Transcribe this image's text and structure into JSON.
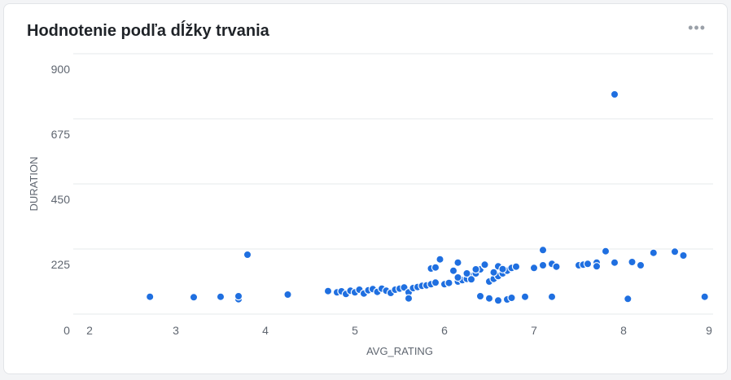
{
  "card": {
    "title": "Hodnotenie podľa dĺžky trvania",
    "menu_icon": "more-horizontal-icon"
  },
  "chart_data": {
    "type": "scatter",
    "title": "Hodnotenie podľa dĺžky trvania",
    "xlabel": "AVG_RATING",
    "ylabel": "DURATION",
    "xlim": [
      0,
      9
    ],
    "ylim": [
      0,
      900
    ],
    "x_ticks": [
      "0",
      "2",
      "3",
      "4",
      "5",
      "6",
      "7",
      "8",
      "9"
    ],
    "y_ticks": [
      "225",
      "450",
      "675",
      "900"
    ],
    "grid": true,
    "color": "#1f6fe0",
    "points": [
      [
        2.7,
        64
      ],
      [
        3.2,
        62
      ],
      [
        3.5,
        64
      ],
      [
        3.7,
        55
      ],
      [
        3.7,
        66
      ],
      [
        3.8,
        219
      ],
      [
        4.25,
        72
      ],
      [
        4.7,
        85
      ],
      [
        4.8,
        80
      ],
      [
        4.85,
        84
      ],
      [
        4.9,
        74
      ],
      [
        4.95,
        86
      ],
      [
        5.0,
        80
      ],
      [
        5.05,
        90
      ],
      [
        5.1,
        76
      ],
      [
        5.15,
        88
      ],
      [
        5.2,
        92
      ],
      [
        5.25,
        82
      ],
      [
        5.3,
        94
      ],
      [
        5.35,
        86
      ],
      [
        5.4,
        78
      ],
      [
        5.45,
        90
      ],
      [
        5.5,
        94
      ],
      [
        5.55,
        98
      ],
      [
        5.6,
        80
      ],
      [
        5.6,
        58
      ],
      [
        5.65,
        96
      ],
      [
        5.7,
        100
      ],
      [
        5.75,
        104
      ],
      [
        5.8,
        106
      ],
      [
        5.85,
        110
      ],
      [
        5.9,
        116
      ],
      [
        5.85,
        168
      ],
      [
        5.9,
        172
      ],
      [
        5.95,
        202
      ],
      [
        6.0,
        110
      ],
      [
        6.05,
        115
      ],
      [
        6.1,
        160
      ],
      [
        6.15,
        120
      ],
      [
        6.2,
        125
      ],
      [
        6.25,
        130
      ],
      [
        6.3,
        140
      ],
      [
        6.35,
        150
      ],
      [
        6.4,
        165
      ],
      [
        6.45,
        180
      ],
      [
        6.5,
        120
      ],
      [
        6.55,
        130
      ],
      [
        6.6,
        140
      ],
      [
        6.65,
        150
      ],
      [
        6.7,
        160
      ],
      [
        6.75,
        170
      ],
      [
        6.8,
        175
      ],
      [
        6.4,
        66
      ],
      [
        6.5,
        58
      ],
      [
        6.6,
        50
      ],
      [
        6.7,
        54
      ],
      [
        6.75,
        60
      ],
      [
        6.9,
        64
      ],
      [
        6.15,
        190
      ],
      [
        6.45,
        182
      ],
      [
        6.6,
        176
      ],
      [
        6.3,
        128
      ],
      [
        6.35,
        165
      ],
      [
        6.25,
        150
      ],
      [
        6.15,
        135
      ],
      [
        6.05,
        115
      ],
      [
        6.55,
        154
      ],
      [
        6.65,
        166
      ],
      [
        7.0,
        170
      ],
      [
        7.1,
        180
      ],
      [
        7.1,
        236
      ],
      [
        7.2,
        185
      ],
      [
        7.25,
        175
      ],
      [
        7.2,
        64
      ],
      [
        7.5,
        180
      ],
      [
        7.55,
        182
      ],
      [
        7.6,
        185
      ],
      [
        7.7,
        190
      ],
      [
        7.7,
        176
      ],
      [
        7.8,
        232
      ],
      [
        7.9,
        190
      ],
      [
        7.9,
        810
      ],
      [
        8.05,
        56
      ],
      [
        8.1,
        192
      ],
      [
        8.2,
        180
      ],
      [
        8.35,
        226
      ],
      [
        8.6,
        230
      ],
      [
        8.7,
        216
      ],
      [
        8.95,
        64
      ]
    ]
  }
}
